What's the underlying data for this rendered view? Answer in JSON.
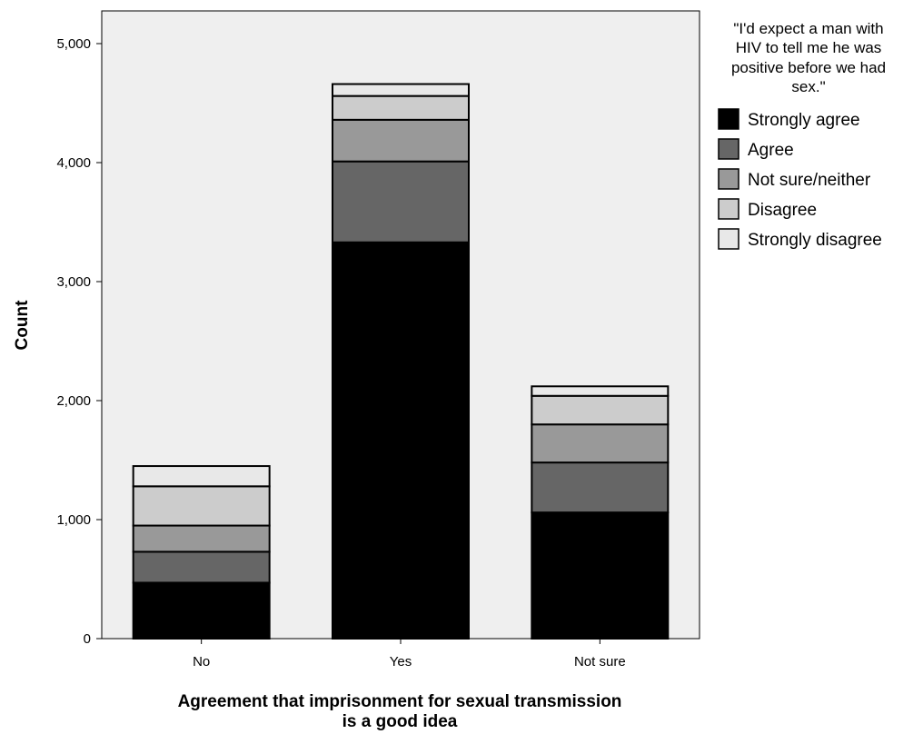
{
  "chart_data": {
    "type": "bar",
    "stacked": true,
    "categories": [
      "No",
      "Yes",
      "Not sure"
    ],
    "series": [
      {
        "name": "Strongly agree",
        "color": "#000000",
        "values": [
          470,
          3330,
          1060
        ]
      },
      {
        "name": "Agree",
        "color": "#666666",
        "values": [
          260,
          680,
          420
        ]
      },
      {
        "name": "Not sure/neither",
        "color": "#999999",
        "values": [
          220,
          350,
          320
        ]
      },
      {
        "name": "Disagree",
        "color": "#cccccc",
        "values": [
          330,
          200,
          240
        ]
      },
      {
        "name": "Strongly disagree",
        "color": "#e8e8e8",
        "values": [
          170,
          100,
          80
        ]
      }
    ],
    "xlabel_lines": [
      "Agreement that imprisonment for sexual transmission",
      "is a good idea"
    ],
    "ylabel": "Count",
    "ylim": [
      0,
      5200
    ],
    "yticks": [
      0,
      1000,
      2000,
      3000,
      4000,
      5000
    ],
    "ytick_labels": [
      "0",
      "1,000",
      "2,000",
      "3,000",
      "4,000",
      "5,000"
    ],
    "legend_title_lines": [
      "\"I'd expect a man with",
      "HIV to tell me he was",
      "positive before we had",
      "sex.\""
    ],
    "legend_position": "right",
    "plot_background": "#efefef",
    "grid": false
  }
}
